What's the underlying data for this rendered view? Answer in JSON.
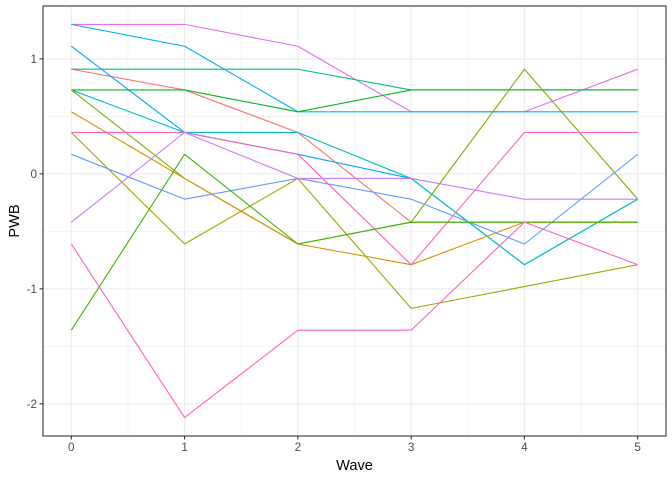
{
  "chart_data": {
    "type": "line",
    "xlabel": "Wave",
    "ylabel": "PWB",
    "xlim": [
      -0.25,
      5.25
    ],
    "ylim": [
      -2.28,
      1.46
    ],
    "x": [
      0,
      1,
      2,
      3,
      4,
      5
    ],
    "x_ticks": [
      0,
      1,
      2,
      3,
      4,
      5
    ],
    "y_ticks": [
      -2,
      -1,
      0,
      1
    ],
    "grid": true,
    "legend": "none",
    "series": [
      {
        "color": "#E76BF3",
        "values": [
          1.3,
          1.3,
          1.11,
          0.54,
          0.54,
          0.91
        ]
      },
      {
        "color": "#00B0F6",
        "values": [
          1.3,
          1.11,
          0.54,
          0.54,
          0.54,
          0.54
        ]
      },
      {
        "color": "#00BF7D",
        "values": [
          0.91,
          0.91,
          0.91,
          0.73,
          0.73,
          0.73
        ]
      },
      {
        "color": "#F8766D",
        "values": [
          0.91,
          0.73,
          0.36,
          -0.42,
          -0.42,
          -0.42
        ]
      },
      {
        "color": "#00A5FF",
        "values": [
          1.11,
          0.36,
          0.17,
          -0.04,
          -0.79,
          -0.22
        ]
      },
      {
        "color": "#00BFC4",
        "values": [
          0.73,
          0.36,
          0.36,
          -0.04,
          -0.79,
          -0.22
        ]
      },
      {
        "color": "#00B81F",
        "values": [
          0.73,
          0.73,
          0.54,
          0.73,
          0.73,
          0.73
        ]
      },
      {
        "color": "#7CAE00",
        "values": [
          0.73,
          -0.04,
          -0.61,
          -0.42,
          0.91,
          -0.22
        ]
      },
      {
        "color": "#D89000",
        "values": [
          0.54,
          -0.04,
          -0.61,
          -0.79,
          -0.42,
          -0.42
        ]
      },
      {
        "color": "#A3A500",
        "values": [
          0.36,
          -0.61,
          -0.04,
          -1.17,
          -0.98,
          -0.79
        ]
      },
      {
        "color": "#FF62BC",
        "values": [
          0.36,
          0.36,
          0.17,
          -0.79,
          0.36,
          0.36
        ]
      },
      {
        "color": "#619CFF",
        "values": [
          0.17,
          -0.22,
          -0.04,
          -0.22,
          -0.61,
          0.17
        ]
      },
      {
        "color": "#C77CFF",
        "values": [
          -0.42,
          0.36,
          -0.04,
          -0.04,
          -0.22,
          -0.22
        ]
      },
      {
        "color": "#39B600",
        "values": [
          -1.36,
          0.17,
          -0.61,
          -0.42,
          -0.42,
          -0.42
        ]
      },
      {
        "color": "#FF61C3",
        "values": [
          -0.61,
          -2.12,
          -1.36,
          -1.36,
          -0.42,
          -0.79
        ]
      }
    ]
  }
}
